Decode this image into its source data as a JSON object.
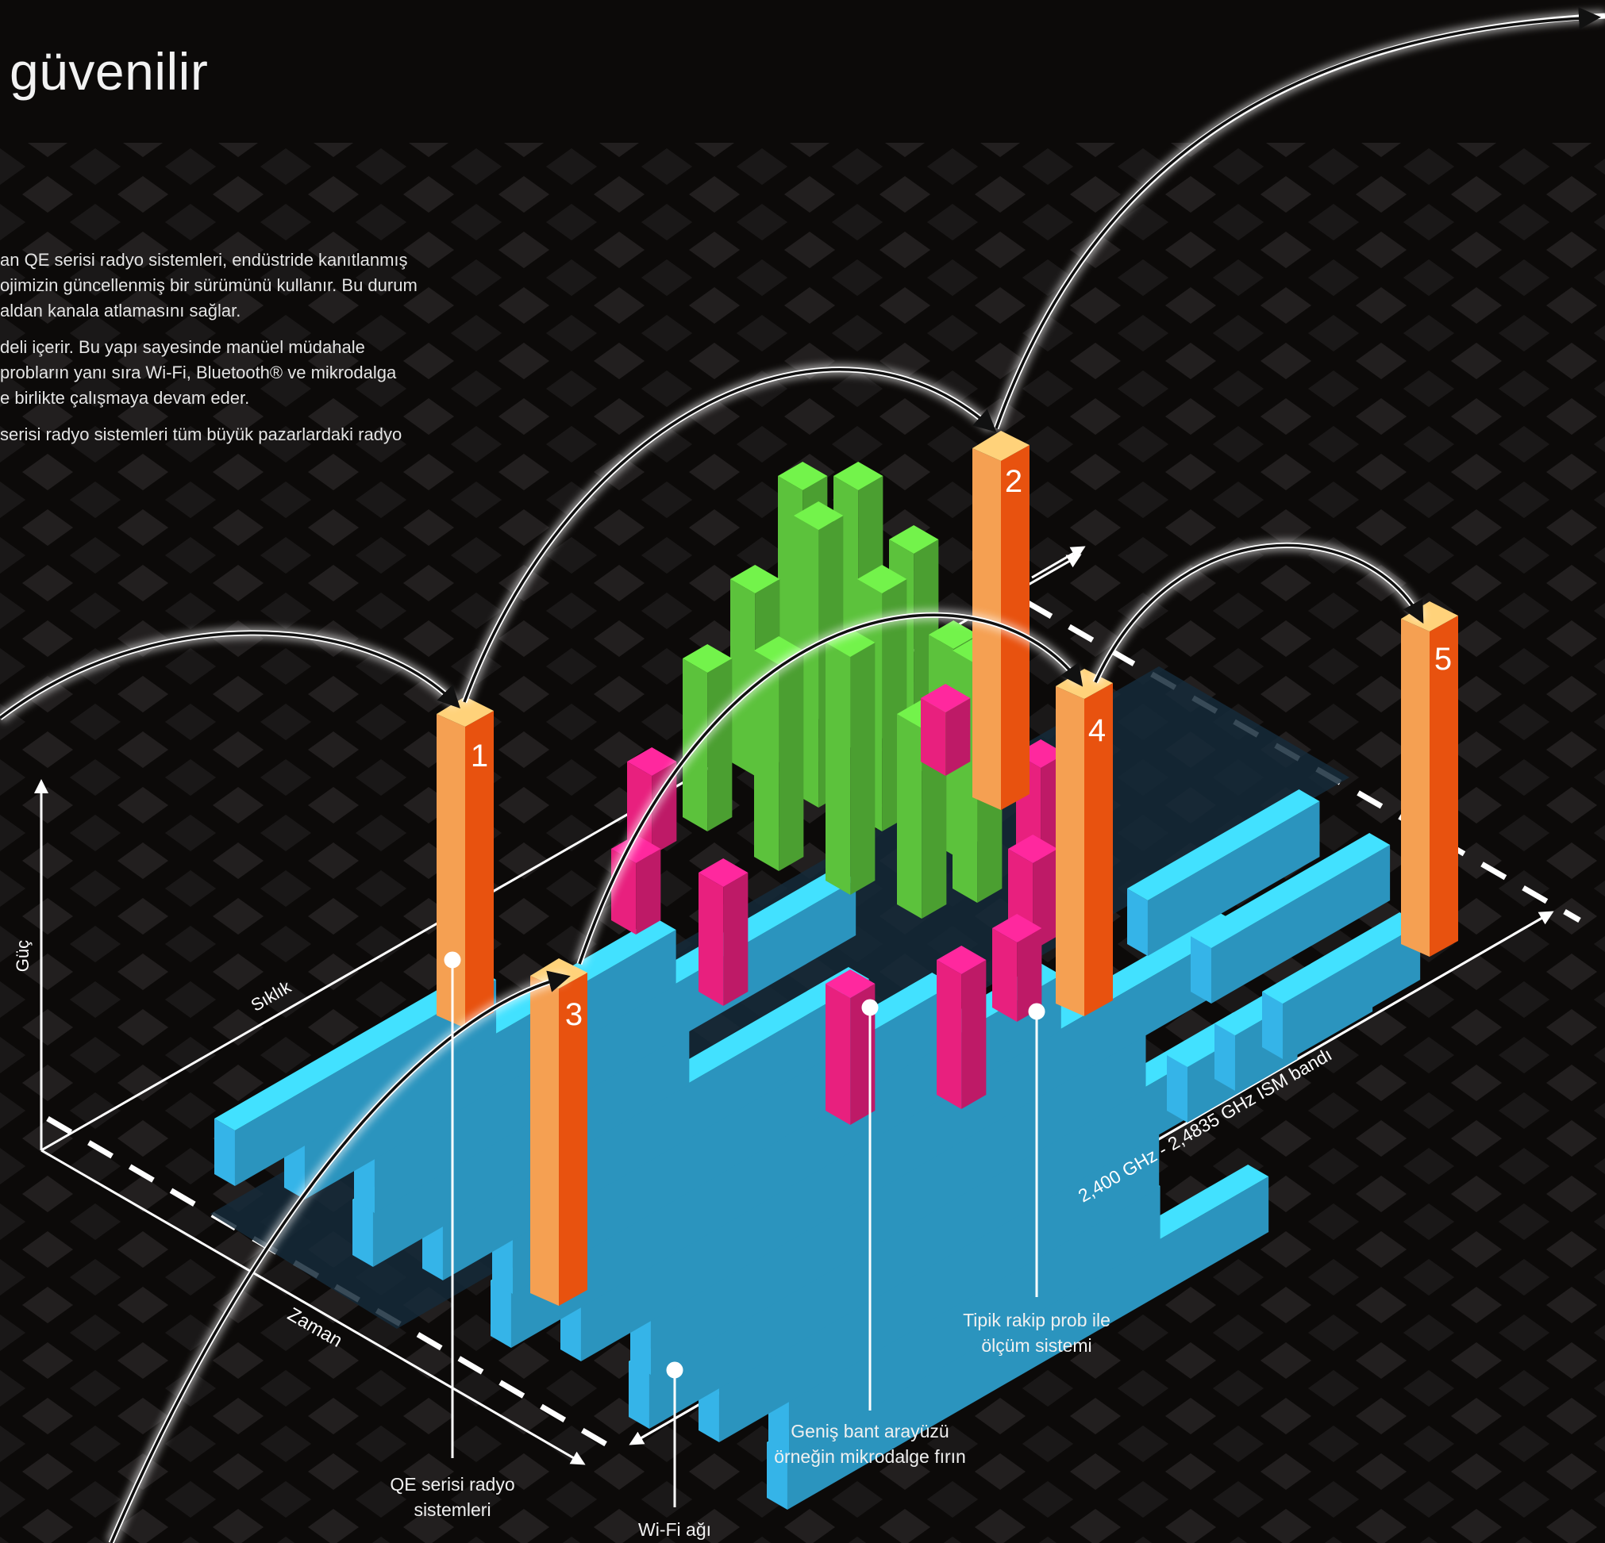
{
  "heading": "güvenilir",
  "paragraphs": [
    "an QE serisi radyo sistemleri, endüstride kanıtlanmış",
    "ojimizin güncellenmiş bir sürümünü kullanır. Bu durum",
    "aldan kanala atlamasını sağlar.",
    "deli içerir. Bu yapı sayesinde manüel müdahale",
    "probların yanı sıra Wi-Fi, Bluetooth® ve mikrodalga",
    "e birlikte çalışmaya devam eder.",
    "serisi radyo sistemleri tüm büyük pazarlardaki radyo"
  ],
  "axes": {
    "power": "Güç",
    "frequency": "Sıklık",
    "time": "Zaman",
    "band": "2,400 GHz - 2,4835 GHz ISM bandı"
  },
  "hop_numbers": [
    "1",
    "2",
    "3",
    "4",
    "5"
  ],
  "callouts": {
    "qe_line1": "QE serisi radyo",
    "qe_line2": "sistemleri",
    "wifi": "Wi-Fi ağı",
    "broadband_line1": "Geniş bant arayüzü",
    "broadband_line2": "örneğin mikrodalge fırın",
    "competitor_line1": "Tipik rakip prob ile",
    "competitor_line2": "ölçüm sistemi"
  },
  "colors": {
    "background": "#0c0a09",
    "wifi_blue": "#35b4e8",
    "broadband_green": "#5cc23c",
    "competitor_pink": "#e8207e",
    "hop_orange": "#f5a052",
    "hop_orange_dark": "#e8520f"
  }
}
